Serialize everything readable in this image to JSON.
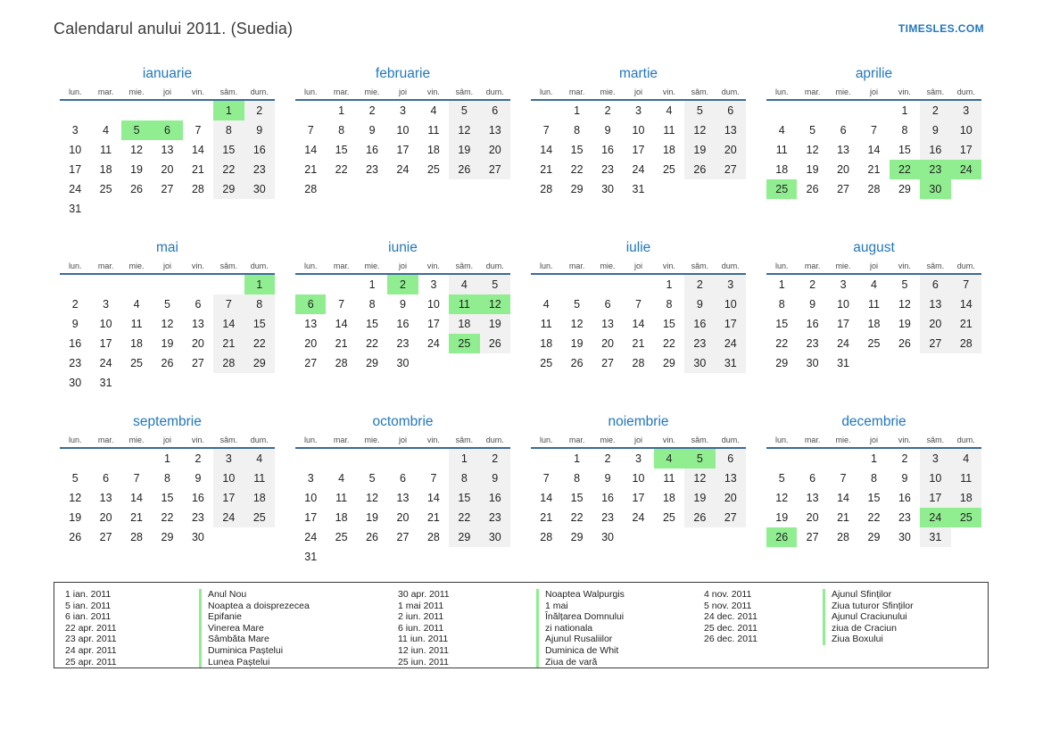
{
  "page": {
    "title": "Calendarul anului 2011. (Suedia)",
    "site_link": "TIMESLES.COM"
  },
  "calendar": {
    "weekday_headers": [
      "lun.",
      "mar.",
      "mie.",
      "joi",
      "vin.",
      "sâm.",
      "dum."
    ],
    "colors": {
      "holiday_green": "#90ee90",
      "weekend_gray": "#f0f1f0",
      "month_title_blue": "#2277be",
      "header_rule_blue": "#3b6b99",
      "day_text": "#222222"
    },
    "months": [
      {
        "name": "ianuarie",
        "weeks": [
          [
            null,
            null,
            null,
            null,
            null,
            1,
            2
          ],
          [
            3,
            4,
            5,
            6,
            7,
            8,
            9
          ],
          [
            10,
            11,
            12,
            13,
            14,
            15,
            16
          ],
          [
            17,
            18,
            19,
            20,
            21,
            22,
            23
          ],
          [
            24,
            25,
            26,
            27,
            28,
            29,
            30
          ],
          [
            31,
            null,
            null,
            null,
            null,
            null,
            null
          ]
        ],
        "holidays": [
          1,
          5,
          6
        ]
      },
      {
        "name": "februarie",
        "weeks": [
          [
            null,
            1,
            2,
            3,
            4,
            5,
            6
          ],
          [
            7,
            8,
            9,
            10,
            11,
            12,
            13
          ],
          [
            14,
            15,
            16,
            17,
            18,
            19,
            20
          ],
          [
            21,
            22,
            23,
            24,
            25,
            26,
            27
          ],
          [
            28,
            null,
            null,
            null,
            null,
            null,
            null
          ]
        ],
        "holidays": []
      },
      {
        "name": "martie",
        "weeks": [
          [
            null,
            1,
            2,
            3,
            4,
            5,
            6
          ],
          [
            7,
            8,
            9,
            10,
            11,
            12,
            13
          ],
          [
            14,
            15,
            16,
            17,
            18,
            19,
            20
          ],
          [
            21,
            22,
            23,
            24,
            25,
            26,
            27
          ],
          [
            28,
            29,
            30,
            31,
            null,
            null,
            null
          ]
        ],
        "holidays": []
      },
      {
        "name": "aprilie",
        "weeks": [
          [
            null,
            null,
            null,
            null,
            1,
            2,
            3
          ],
          [
            4,
            5,
            6,
            7,
            8,
            9,
            10
          ],
          [
            11,
            12,
            13,
            14,
            15,
            16,
            17
          ],
          [
            18,
            19,
            20,
            21,
            22,
            23,
            24
          ],
          [
            25,
            26,
            27,
            28,
            29,
            30,
            null
          ]
        ],
        "holidays": [
          22,
          23,
          24,
          25,
          30
        ]
      },
      {
        "name": "mai",
        "weeks": [
          [
            null,
            null,
            null,
            null,
            null,
            null,
            1
          ],
          [
            2,
            3,
            4,
            5,
            6,
            7,
            8
          ],
          [
            9,
            10,
            11,
            12,
            13,
            14,
            15
          ],
          [
            16,
            17,
            18,
            19,
            20,
            21,
            22
          ],
          [
            23,
            24,
            25,
            26,
            27,
            28,
            29
          ],
          [
            30,
            31,
            null,
            null,
            null,
            null,
            null
          ]
        ],
        "holidays": [
          1
        ]
      },
      {
        "name": "iunie",
        "weeks": [
          [
            null,
            null,
            1,
            2,
            3,
            4,
            5
          ],
          [
            6,
            7,
            8,
            9,
            10,
            11,
            12
          ],
          [
            13,
            14,
            15,
            16,
            17,
            18,
            19
          ],
          [
            20,
            21,
            22,
            23,
            24,
            25,
            26
          ],
          [
            27,
            28,
            29,
            30,
            null,
            null,
            null
          ]
        ],
        "holidays": [
          2,
          6,
          11,
          12,
          25
        ]
      },
      {
        "name": "iulie",
        "weeks": [
          [
            null,
            null,
            null,
            null,
            1,
            2,
            3
          ],
          [
            4,
            5,
            6,
            7,
            8,
            9,
            10
          ],
          [
            11,
            12,
            13,
            14,
            15,
            16,
            17
          ],
          [
            18,
            19,
            20,
            21,
            22,
            23,
            24
          ],
          [
            25,
            26,
            27,
            28,
            29,
            30,
            31
          ]
        ],
        "holidays": []
      },
      {
        "name": "august",
        "weeks": [
          [
            1,
            2,
            3,
            4,
            5,
            6,
            7
          ],
          [
            8,
            9,
            10,
            11,
            12,
            13,
            14
          ],
          [
            15,
            16,
            17,
            18,
            19,
            20,
            21
          ],
          [
            22,
            23,
            24,
            25,
            26,
            27,
            28
          ],
          [
            29,
            30,
            31,
            null,
            null,
            null,
            null
          ]
        ],
        "holidays": []
      },
      {
        "name": "septembrie",
        "weeks": [
          [
            null,
            null,
            null,
            1,
            2,
            3,
            4
          ],
          [
            5,
            6,
            7,
            8,
            9,
            10,
            11
          ],
          [
            12,
            13,
            14,
            15,
            16,
            17,
            18
          ],
          [
            19,
            20,
            21,
            22,
            23,
            24,
            25
          ],
          [
            26,
            27,
            28,
            29,
            30,
            null,
            null
          ]
        ],
        "holidays": []
      },
      {
        "name": "octombrie",
        "weeks": [
          [
            null,
            null,
            null,
            null,
            null,
            1,
            2
          ],
          [
            3,
            4,
            5,
            6,
            7,
            8,
            9
          ],
          [
            10,
            11,
            12,
            13,
            14,
            15,
            16
          ],
          [
            17,
            18,
            19,
            20,
            21,
            22,
            23
          ],
          [
            24,
            25,
            26,
            27,
            28,
            29,
            30
          ],
          [
            31,
            null,
            null,
            null,
            null,
            null,
            null
          ]
        ],
        "holidays": []
      },
      {
        "name": "noiembrie",
        "weeks": [
          [
            null,
            1,
            2,
            3,
            4,
            5,
            6
          ],
          [
            7,
            8,
            9,
            10,
            11,
            12,
            13
          ],
          [
            14,
            15,
            16,
            17,
            18,
            19,
            20
          ],
          [
            21,
            22,
            23,
            24,
            25,
            26,
            27
          ],
          [
            28,
            29,
            30,
            null,
            null,
            null,
            null
          ]
        ],
        "holidays": [
          4,
          5
        ]
      },
      {
        "name": "decembrie",
        "weeks": [
          [
            null,
            null,
            null,
            1,
            2,
            3,
            4
          ],
          [
            5,
            6,
            7,
            8,
            9,
            10,
            11
          ],
          [
            12,
            13,
            14,
            15,
            16,
            17,
            18
          ],
          [
            19,
            20,
            21,
            22,
            23,
            24,
            25
          ],
          [
            26,
            27,
            28,
            29,
            30,
            31,
            null
          ]
        ],
        "holidays": [
          24,
          25,
          26
        ]
      }
    ]
  },
  "legend": {
    "columns": [
      {
        "entries": [
          {
            "date": "1 ian. 2011",
            "name": "Anul Nou"
          },
          {
            "date": "5 ian. 2011",
            "name": "Noaptea a doisprezecea"
          },
          {
            "date": "6 ian. 2011",
            "name": "Epifanie"
          },
          {
            "date": "22 apr. 2011",
            "name": "Vinerea Mare"
          },
          {
            "date": "23 apr. 2011",
            "name": "Sâmbăta Mare"
          },
          {
            "date": "24 apr. 2011",
            "name": "Duminica Paștelui"
          },
          {
            "date": "25 apr. 2011",
            "name": "Lunea Paștelui"
          }
        ]
      },
      {
        "entries": [
          {
            "date": "30 apr. 2011",
            "name": "Noaptea Walpurgis"
          },
          {
            "date": "1 mai 2011",
            "name": "1 mai"
          },
          {
            "date": "2 iun. 2011",
            "name": "Înălțarea Domnului"
          },
          {
            "date": "6 iun. 2011",
            "name": "zi nationala"
          },
          {
            "date": "11 iun. 2011",
            "name": "Ajunul Rusaliilor"
          },
          {
            "date": "12 iun. 2011",
            "name": "Duminica de Whit"
          },
          {
            "date": "25 iun. 2011",
            "name": "Ziua de vară"
          }
        ]
      },
      {
        "entries": [
          {
            "date": "4 nov. 2011",
            "name": "Ajunul Sfinților"
          },
          {
            "date": "5 nov. 2011",
            "name": "Ziua tuturor Sfinților"
          },
          {
            "date": "24 dec. 2011",
            "name": "Ajunul Craciunului"
          },
          {
            "date": "25 dec. 2011",
            "name": "ziua de Craciun"
          },
          {
            "date": "26 dec. 2011",
            "name": "Ziua Boxului"
          }
        ]
      }
    ]
  }
}
